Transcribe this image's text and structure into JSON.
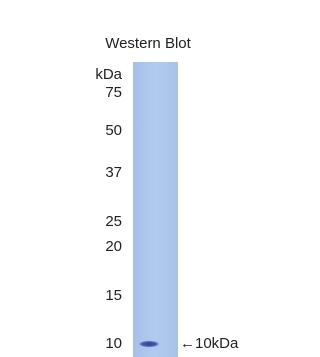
{
  "title": "Western Blot",
  "unit": "kDa",
  "markers": [
    "75",
    "50",
    "37",
    "25",
    "20",
    "15",
    "10"
  ],
  "band_label": "←10kDa"
}
